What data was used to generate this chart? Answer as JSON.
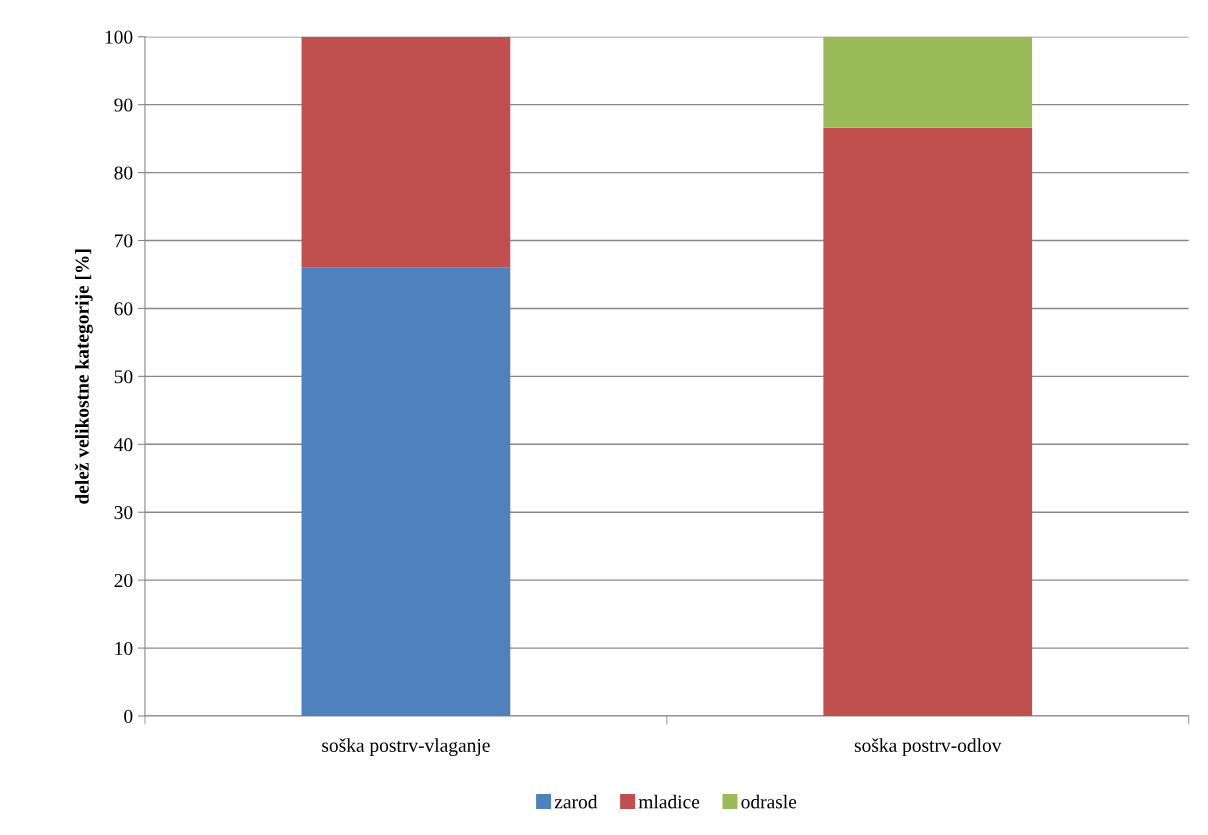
{
  "chart_data": {
    "type": "bar",
    "stacked": true,
    "ylabel": "delež velikostne kategorije [%]",
    "categories": [
      "soška postrv-vlaganje",
      "soška postrv-odlov"
    ],
    "series": [
      {
        "name": "zarod",
        "color": "#4f81bd",
        "values": [
          66.0,
          0
        ]
      },
      {
        "name": "mladice",
        "color": "#c0504d",
        "values": [
          34.0,
          86.6
        ]
      },
      {
        "name": "odrasle",
        "color": "#9bbb59",
        "values": [
          0,
          13.4
        ]
      }
    ],
    "ylim": [
      0,
      100
    ],
    "yticks": [
      0,
      10,
      20,
      30,
      40,
      50,
      60,
      70,
      80,
      90,
      100
    ],
    "grid": "y",
    "legend": "bottom"
  }
}
